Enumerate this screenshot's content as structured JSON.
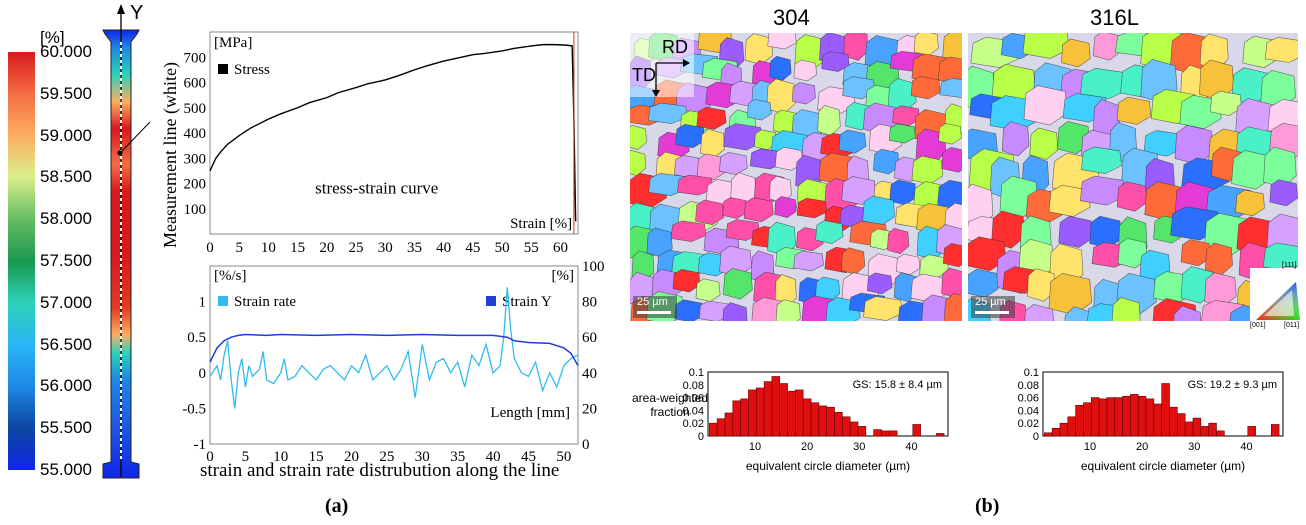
{
  "panel_a": {
    "label": "(a)",
    "colorbar": {
      "unit": "[%]",
      "labels": [
        "60.000",
        "59.500",
        "59.000",
        "58.500",
        "58.000",
        "57.500",
        "57.000",
        "56.500",
        "56.000",
        "55.500",
        "55.000"
      ],
      "colors": [
        "#d7191c",
        "#f46d43",
        "#fdae61",
        "#d9ef8b",
        "#66bd63",
        "#1a9850",
        "#2dd1b8",
        "#29b6f6",
        "#1e88e5",
        "#0d47a1",
        "#1026e8"
      ]
    },
    "specimen": {
      "axis_label": "Y",
      "measurement_label": "Measurement line (white)"
    },
    "stress_chart": {
      "unit": "[MPa]",
      "legend": "Stress",
      "annotation": "stress-strain curve",
      "xlabel": "Strain [%]"
    },
    "strain_chart": {
      "left_unit": "[%/s]",
      "right_unit": "[%]",
      "legend_rate": "Strain rate",
      "legend_y": "Strain Y",
      "xlabel": "Length [mm]",
      "caption": "strain and strain rate distrubution along the line"
    }
  },
  "panel_b": {
    "label": "(b)",
    "titles": [
      "304",
      "316L"
    ],
    "scale_bar": "25 µm",
    "axes_labels": {
      "rd": "RD",
      "td": "TD"
    },
    "ipf_labels": {
      "top": "[111]",
      "left": "[001]",
      "right": "[011]"
    },
    "hist_ylabel_line1": "area-weighted",
    "hist_ylabel_line2": "fraction",
    "hist_xlabel": "equivalent circle diameter (µm)",
    "gs_304": "GS: 15.8 ± 8.4 µm",
    "gs_316": "GS: 19.2 ± 9.3 µm"
  },
  "chart_data": [
    {
      "type": "line",
      "title": "stress-strain curve",
      "xlabel": "Strain [%]",
      "ylabel": "[MPa]",
      "xlim": [
        0,
        63
      ],
      "ylim": [
        0,
        800
      ],
      "xticks": [
        0,
        5,
        10,
        15,
        20,
        25,
        30,
        35,
        40,
        45,
        50,
        55,
        60
      ],
      "yticks": [
        100,
        200,
        300,
        400,
        500,
        600,
        700
      ],
      "series": [
        {
          "name": "Stress",
          "color": "#000000",
          "x": [
            0,
            1,
            2,
            3,
            5,
            7,
            10,
            12,
            15,
            17,
            20,
            22,
            25,
            27,
            30,
            32,
            35,
            37,
            40,
            42,
            45,
            47,
            50,
            52,
            55,
            57,
            59,
            61,
            62,
            62.3,
            62.6
          ],
          "y": [
            250,
            300,
            330,
            355,
            390,
            420,
            455,
            475,
            500,
            520,
            540,
            560,
            580,
            595,
            610,
            625,
            650,
            665,
            685,
            695,
            710,
            715,
            725,
            735,
            745,
            750,
            750,
            748,
            745,
            450,
            50
          ]
        }
      ]
    },
    {
      "type": "line",
      "title": "strain and strain rate distrubution along the line",
      "xlabel": "Length [mm]",
      "ylabel": "[%/s]",
      "xlim": [
        0,
        52
      ],
      "ylim": [
        -1,
        1.5
      ],
      "xticks": [
        0,
        5,
        10,
        15,
        20,
        25,
        30,
        35,
        40,
        45,
        50
      ],
      "yticks": [
        -1,
        -0.5,
        0,
        0.5,
        1
      ],
      "y2label": "[%]",
      "y2lim": [
        0,
        100
      ],
      "y2ticks": [
        0,
        20,
        40,
        60,
        80,
        100
      ],
      "series": [
        {
          "name": "Strain rate",
          "color": "#33bbee",
          "axis": "left",
          "x": [
            0,
            1,
            1.5,
            2,
            2.5,
            3,
            3.5,
            4,
            4.5,
            5,
            5.5,
            6,
            7,
            7.5,
            8,
            9,
            10,
            10.5,
            11,
            12,
            13,
            14,
            15,
            16,
            17,
            18,
            19,
            20,
            21,
            22,
            23,
            24,
            25,
            26,
            27,
            28,
            29,
            30,
            31,
            32,
            33,
            34,
            35,
            36,
            37,
            38,
            39,
            40,
            41,
            41.5,
            42,
            42.5,
            43,
            44,
            45,
            46,
            47,
            48,
            49,
            50,
            51,
            52
          ],
          "y": [
            -0.05,
            0.1,
            -0.1,
            0.25,
            0.45,
            -0.1,
            -0.5,
            0.0,
            0.2,
            -0.2,
            0.1,
            -0.05,
            0.05,
            0.3,
            -0.1,
            -0.15,
            0.0,
            0.2,
            -0.1,
            -0.05,
            0.1,
            0.0,
            -0.1,
            0.05,
            0.1,
            0.0,
            -0.1,
            0.1,
            0.0,
            0.25,
            -0.1,
            0.0,
            0.1,
            -0.1,
            0.05,
            0.3,
            -0.35,
            0.4,
            -0.1,
            0.15,
            0.2,
            0.0,
            0.15,
            -0.2,
            0.25,
            0.1,
            0.4,
            0.0,
            0.1,
            0.5,
            1.2,
            0.6,
            0.2,
            0.0,
            -0.05,
            0.15,
            -0.25,
            0.0,
            -0.2,
            0.1,
            0.2,
            0.25
          ]
        },
        {
          "name": "Strain Y",
          "color": "#1f3fd0",
          "axis": "right",
          "x": [
            0,
            1,
            2,
            3,
            4,
            5,
            8,
            10,
            15,
            20,
            25,
            30,
            35,
            40,
            42,
            43,
            45,
            48,
            50,
            51,
            52
          ],
          "y": [
            46,
            54,
            58,
            60,
            61,
            61.5,
            61,
            61.5,
            61,
            61.5,
            61,
            61.5,
            61,
            61,
            60,
            58,
            57,
            56.5,
            54,
            51,
            44
          ]
        }
      ]
    },
    {
      "type": "bar",
      "title": "304",
      "xlabel": "equivalent circle diameter (µm)",
      "ylabel": "area-weighted fraction",
      "xlim": [
        1,
        47
      ],
      "ylim": [
        0,
        0.1
      ],
      "xticks": [
        10,
        20,
        30,
        40
      ],
      "yticks": [
        0,
        0.02,
        0.04,
        0.06,
        0.08,
        0.1
      ],
      "annotation": "GS: 15.8 ± 8.4 µm",
      "x": [
        2,
        3.5,
        5,
        6.5,
        8,
        9.5,
        11,
        12.5,
        14,
        15.5,
        17,
        18.5,
        20,
        21.5,
        23,
        24.5,
        26,
        27.5,
        29,
        30.5,
        32,
        33.5,
        35,
        36.5,
        38,
        39.5,
        41,
        42.5,
        44,
        45.5
      ],
      "values": [
        0.02,
        0.027,
        0.036,
        0.055,
        0.058,
        0.072,
        0.075,
        0.085,
        0.093,
        0.082,
        0.07,
        0.072,
        0.058,
        0.052,
        0.047,
        0.045,
        0.037,
        0.03,
        0.022,
        0.015,
        0.0,
        0.01,
        0.008,
        0.008,
        0.0,
        0.0,
        0.018,
        0.0,
        0.0,
        0.004
      ]
    },
    {
      "type": "bar",
      "title": "316L",
      "xlabel": "equivalent circle diameter (µm)",
      "ylabel": "area-weighted fraction",
      "xlim": [
        1,
        47
      ],
      "ylim": [
        0,
        0.1
      ],
      "xticks": [
        10,
        20,
        30,
        40
      ],
      "yticks": [
        0,
        0.02,
        0.04,
        0.06,
        0.08,
        0.1
      ],
      "annotation": "GS: 19.2 ± 9.3 µm",
      "x": [
        2,
        3.5,
        5,
        6.5,
        8,
        9.5,
        11,
        12.5,
        14,
        15.5,
        17,
        18.5,
        20,
        21.5,
        23,
        24.5,
        26,
        27.5,
        29,
        30.5,
        32,
        33.5,
        35,
        36.5,
        38,
        39.5,
        41,
        42.5,
        44,
        45.5
      ],
      "values": [
        0.005,
        0.012,
        0.02,
        0.03,
        0.048,
        0.052,
        0.06,
        0.058,
        0.06,
        0.06,
        0.062,
        0.065,
        0.062,
        0.058,
        0.05,
        0.082,
        0.045,
        0.035,
        0.022,
        0.028,
        0.015,
        0.02,
        0.008,
        0.0,
        0.0,
        0.0,
        0.015,
        0.0,
        0.0,
        0.018
      ]
    }
  ]
}
